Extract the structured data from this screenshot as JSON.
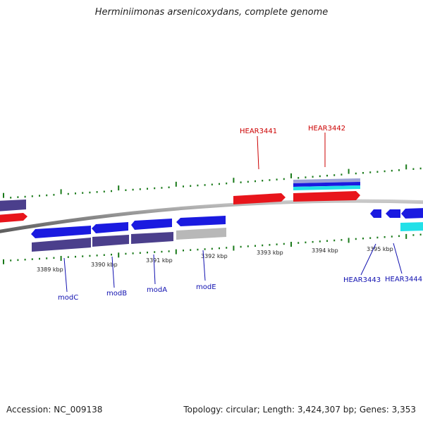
{
  "title": "Herminiimonas arsenicoxydans, complete genome",
  "footer": {
    "accession": "Accession: NC_009138",
    "summary": "Topology: circular; Length: 3,424,307 bp; Genes: 3,353"
  },
  "colors": {
    "forward_cds": "#e8151b",
    "reverse_cds": "#1a1ae0",
    "operon_dark": "#4b3f8c",
    "gray_feature": "#b8b8b8",
    "cyan_feature": "#22e0e8",
    "tick": "#1a7a1a",
    "label_forward": "#cc0000",
    "label_reverse": "#1010b0"
  },
  "ticks": [
    "3389 kbp",
    "3390 kbp",
    "3391 kbp",
    "3392 kbp",
    "3393 kbp",
    "3394 kbp",
    "3395 kbp"
  ],
  "genes_top": [
    {
      "label": "HEAR3441"
    },
    {
      "label": "HEAR3442"
    }
  ],
  "genes_bottom": [
    {
      "label": "modC"
    },
    {
      "label": "modB"
    },
    {
      "label": "modA"
    },
    {
      "label": "modE"
    },
    {
      "label": "HEAR3443"
    },
    {
      "label": "HEAR3444"
    }
  ]
}
